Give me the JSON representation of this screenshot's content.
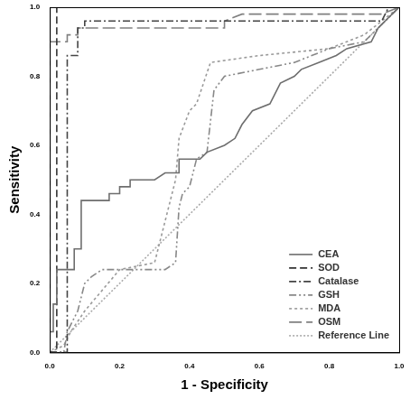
{
  "chart_data": {
    "type": "line",
    "x_label": "1 - Specificity",
    "y_label": "Sensitivity",
    "xlim": [
      0,
      1
    ],
    "ylim": [
      0,
      1
    ],
    "xticks": [
      {
        "value": 0,
        "label": "0.0"
      },
      0.2,
      0.4,
      0.6,
      0.8,
      {
        "value": 1,
        "label": "1.0"
      }
    ],
    "yticks": [
      {
        "value": 0,
        "label": "0.0"
      },
      0.2,
      0.4,
      0.6,
      0.8,
      {
        "value": 1,
        "label": "1.0"
      }
    ],
    "grid": false,
    "legend": "lower right",
    "series": [
      {
        "name": "CEA",
        "color": "#6e6e6e",
        "line_style": "solid",
        "x": [
          0,
          0,
          0.01,
          0.01,
          0.02,
          0.02,
          0.07,
          0.07,
          0.09,
          0.09,
          0.17,
          0.17,
          0.2,
          0.2,
          0.23,
          0.23,
          0.3,
          0.33,
          0.37,
          0.37,
          0.43,
          0.45,
          0.5,
          0.53,
          0.55,
          0.58,
          0.63,
          0.66,
          0.7,
          0.72,
          0.77,
          0.82,
          0.85,
          0.92,
          0.94,
          1
        ],
        "values": [
          0,
          0.06,
          0.06,
          0.14,
          0.14,
          0.24,
          0.24,
          0.3,
          0.3,
          0.44,
          0.44,
          0.46,
          0.46,
          0.48,
          0.48,
          0.5,
          0.5,
          0.52,
          0.52,
          0.56,
          0.56,
          0.58,
          0.6,
          0.62,
          0.66,
          0.7,
          0.72,
          0.78,
          0.8,
          0.82,
          0.84,
          0.86,
          0.88,
          0.9,
          0.94,
          1
        ]
      },
      {
        "name": "SOD",
        "color": "#333333",
        "line_style": "dashed",
        "x": [
          0,
          0.02,
          0.02,
          1
        ],
        "values": [
          0,
          0,
          1,
          1
        ]
      },
      {
        "name": "Catalase",
        "color": "#444444",
        "line_style": "dashdot",
        "x": [
          0,
          0.05,
          0.05,
          0.08,
          0.08,
          0.1,
          0.1,
          0.95,
          0.97,
          1
        ],
        "values": [
          0,
          0,
          0.86,
          0.86,
          0.94,
          0.94,
          0.96,
          0.96,
          1,
          1
        ]
      },
      {
        "name": "GSH",
        "color": "#888888",
        "line_style": "dashdotdot",
        "x": [
          0,
          0.04,
          0.05,
          0.08,
          0.1,
          0.12,
          0.15,
          0.33,
          0.36,
          0.37,
          0.38,
          0.4,
          0.42,
          0.45,
          0.47,
          0.5,
          0.6,
          0.7,
          0.8,
          0.9,
          1
        ],
        "values": [
          0,
          0,
          0.06,
          0.12,
          0.2,
          0.22,
          0.24,
          0.24,
          0.26,
          0.42,
          0.46,
          0.48,
          0.56,
          0.58,
          0.76,
          0.8,
          0.82,
          0.84,
          0.88,
          0.9,
          1
        ]
      },
      {
        "name": "MDA",
        "color": "#9a9a9a",
        "line_style": "dotted",
        "x": [
          0,
          0.04,
          0.06,
          0.1,
          0.2,
          0.3,
          0.36,
          0.37,
          0.4,
          0.42,
          0.46,
          0.6,
          0.8,
          0.9,
          1
        ],
        "values": [
          0,
          0.02,
          0.06,
          0.12,
          0.24,
          0.26,
          0.5,
          0.62,
          0.7,
          0.72,
          0.84,
          0.86,
          0.88,
          0.92,
          1
        ]
      },
      {
        "name": "OSM",
        "color": "#808080",
        "line_style": "longdash",
        "x": [
          0,
          0,
          0.05,
          0.05,
          0.08,
          0.08,
          0.1,
          0.5,
          0.5,
          0.55,
          0.95,
          1
        ],
        "values": [
          0,
          0.9,
          0.9,
          0.92,
          0.92,
          0.94,
          0.94,
          0.94,
          0.96,
          0.98,
          0.98,
          1
        ]
      },
      {
        "name": "Reference Line",
        "color": "#aaaaaa",
        "line_style": "finedotted",
        "x": [
          0,
          1
        ],
        "values": [
          0,
          1
        ]
      }
    ]
  }
}
